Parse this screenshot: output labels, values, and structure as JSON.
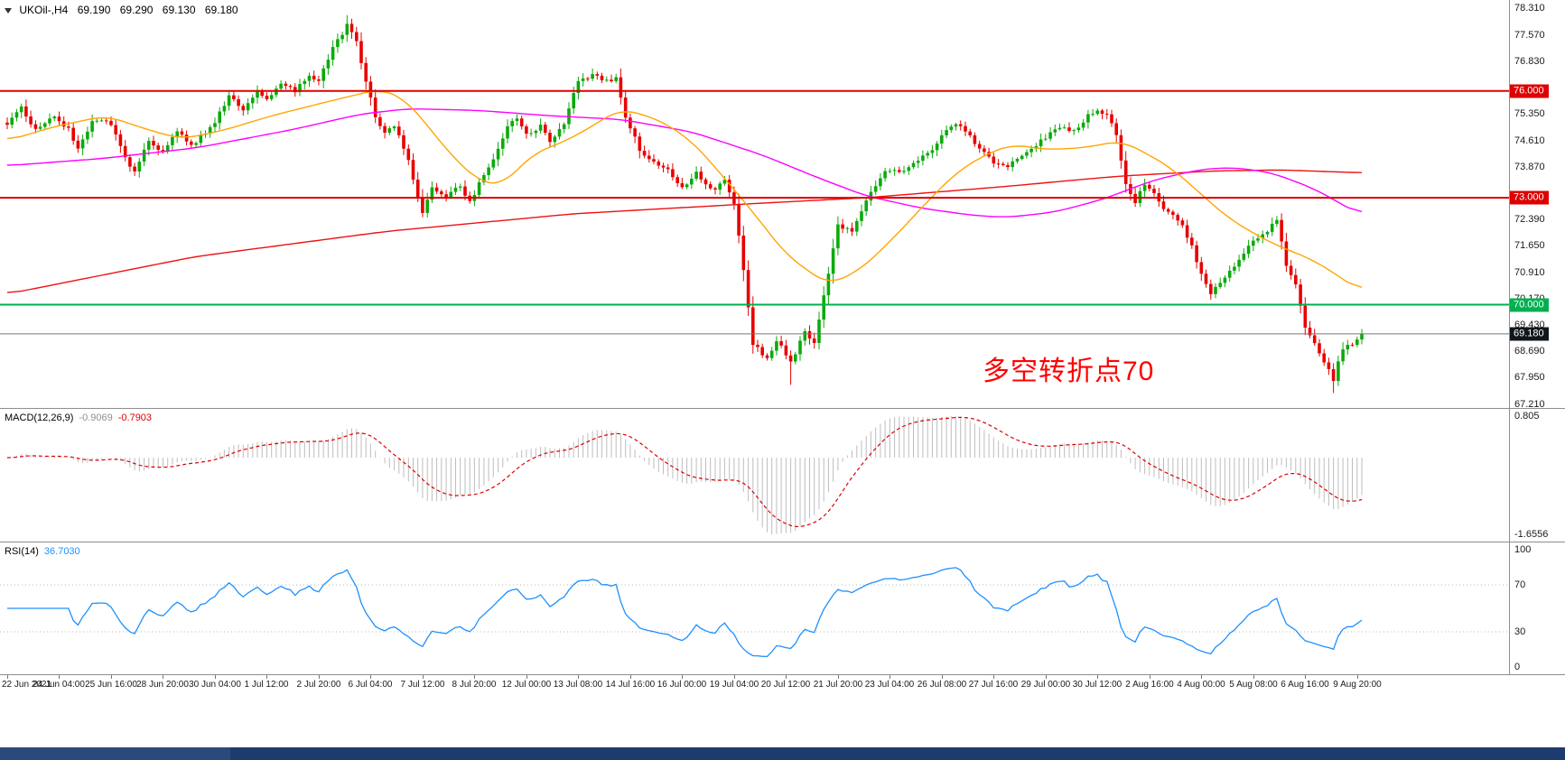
{
  "header": {
    "symbol": "UKOil-,H4",
    "open": "69.190",
    "high": "69.290",
    "low": "69.130",
    "close": "69.180"
  },
  "annotation": {
    "text": "多空转折点70",
    "color": "#ff0000"
  },
  "chart_data": [
    {
      "type": "candlestick",
      "symbol": "UKOil",
      "timeframe": "H4",
      "num_candles": 288,
      "ylim": [
        67.1,
        78.55
      ],
      "last_price": 69.18,
      "y_ticks": [
        "78.310",
        "77.570",
        "76.830",
        "75.350",
        "74.610",
        "73.870",
        "72.390",
        "71.650",
        "70.910",
        "70.170",
        "69.430",
        "68.690",
        "67.950",
        "67.210"
      ],
      "x_labels": [
        "22 Jun 2021",
        "24 Jun 04:00",
        "25 Jun 16:00",
        "28 Jun 20:00",
        "30 Jun 04:00",
        "1 Jul 12:00",
        "2 Jul 20:00",
        "6 Jul 04:00",
        "7 Jul 12:00",
        "8 Jul 20:00",
        "12 Jul 00:00",
        "13 Jul 08:00",
        "14 Jul 16:00",
        "16 Jul 00:00",
        "19 Jul 04:00",
        "20 Jul 12:00",
        "21 Jul 20:00",
        "23 Jul 04:00",
        "26 Jul 08:00",
        "27 Jul 16:00",
        "29 Jul 00:00",
        "30 Jul 12:00",
        "2 Aug 16:00",
        "4 Aug 00:00",
        "5 Aug 08:00",
        "6 Aug 16:00",
        "9 Aug 20:00"
      ],
      "x_label_step": 11,
      "hlines": [
        {
          "price": 76.0,
          "label": "76.000",
          "color": "#dd0000"
        },
        {
          "price": 73.0,
          "label": "73.000",
          "color": "#dd0000"
        },
        {
          "price": 70.0,
          "label": "70.000",
          "color": "#00b050"
        }
      ],
      "close_anchors": [
        [
          0,
          75.1
        ],
        [
          3,
          75.5
        ],
        [
          6,
          74.9
        ],
        [
          10,
          75.3
        ],
        [
          13,
          74.9
        ],
        [
          15,
          74.35
        ],
        [
          18,
          75.2
        ],
        [
          22,
          75.1
        ],
        [
          25,
          74.1
        ],
        [
          27,
          73.7
        ],
        [
          30,
          74.6
        ],
        [
          33,
          74.3
        ],
        [
          36,
          74.9
        ],
        [
          39,
          74.45
        ],
        [
          44,
          75.1
        ],
        [
          47,
          75.9
        ],
        [
          50,
          75.5
        ],
        [
          53,
          76.0
        ],
        [
          55,
          75.8
        ],
        [
          58,
          76.2
        ],
        [
          61,
          76.0
        ],
        [
          64,
          76.4
        ],
        [
          66,
          76.3
        ],
        [
          69,
          77.2
        ],
        [
          72,
          77.85
        ],
        [
          74,
          77.4
        ],
        [
          76,
          76.2
        ],
        [
          78,
          75.3
        ],
        [
          80,
          74.8
        ],
        [
          82,
          75.05
        ],
        [
          85,
          74.0
        ],
        [
          88,
          72.6
        ],
        [
          90,
          73.25
        ],
        [
          93,
          73.0
        ],
        [
          96,
          73.35
        ],
        [
          98,
          72.85
        ],
        [
          100,
          73.4
        ],
        [
          103,
          74.1
        ],
        [
          106,
          75.0
        ],
        [
          108,
          75.2
        ],
        [
          110,
          74.8
        ],
        [
          113,
          75.0
        ],
        [
          115,
          74.6
        ],
        [
          118,
          75.1
        ],
        [
          121,
          76.3
        ],
        [
          124,
          76.45
        ],
        [
          127,
          76.25
        ],
        [
          129,
          76.4
        ],
        [
          131,
          75.3
        ],
        [
          134,
          74.35
        ],
        [
          137,
          74.0
        ],
        [
          140,
          73.8
        ],
        [
          143,
          73.3
        ],
        [
          146,
          73.7
        ],
        [
          149,
          73.2
        ],
        [
          152,
          73.45
        ],
        [
          154,
          72.8
        ],
        [
          156,
          71.0
        ],
        [
          158,
          68.9
        ],
        [
          161,
          68.5
        ],
        [
          163,
          69.0
        ],
        [
          166,
          68.4
        ],
        [
          169,
          69.2
        ],
        [
          171,
          68.9
        ],
        [
          173,
          70.2
        ],
        [
          176,
          72.2
        ],
        [
          179,
          72.1
        ],
        [
          182,
          72.9
        ],
        [
          185,
          73.6
        ],
        [
          187,
          73.8
        ],
        [
          190,
          73.7
        ],
        [
          193,
          74.1
        ],
        [
          196,
          74.3
        ],
        [
          198,
          74.8
        ],
        [
          201,
          75.1
        ],
        [
          204,
          74.7
        ],
        [
          207,
          74.3
        ],
        [
          209,
          74.0
        ],
        [
          212,
          73.9
        ],
        [
          215,
          74.2
        ],
        [
          218,
          74.5
        ],
        [
          220,
          74.7
        ],
        [
          223,
          75.0
        ],
        [
          226,
          74.9
        ],
        [
          229,
          75.3
        ],
        [
          231,
          75.5
        ],
        [
          233,
          75.3
        ],
        [
          235,
          74.8
        ],
        [
          237,
          73.4
        ],
        [
          239,
          72.9
        ],
        [
          241,
          73.4
        ],
        [
          243,
          73.1
        ],
        [
          245,
          72.7
        ],
        [
          247,
          72.5
        ],
        [
          249,
          72.2
        ],
        [
          251,
          71.6
        ],
        [
          253,
          70.9
        ],
        [
          255,
          70.3
        ],
        [
          257,
          70.6
        ],
        [
          259,
          71.0
        ],
        [
          261,
          71.2
        ],
        [
          263,
          71.6
        ],
        [
          265,
          71.9
        ],
        [
          267,
          72.1
        ],
        [
          269,
          72.4
        ],
        [
          271,
          71.1
        ],
        [
          273,
          70.6
        ],
        [
          275,
          69.4
        ],
        [
          277,
          68.9
        ],
        [
          279,
          68.4
        ],
        [
          281,
          67.9
        ],
        [
          283,
          68.8
        ],
        [
          285,
          68.9
        ],
        [
          287,
          69.18
        ]
      ],
      "wick_events": [
        {
          "i": 72,
          "high": 0.15
        },
        {
          "i": 166,
          "low": 0.55
        },
        {
          "i": 281,
          "low": 0.25
        }
      ],
      "ma_fast_anchors": [
        [
          0,
          74.6
        ],
        [
          10,
          75.0
        ],
        [
          21,
          75.3
        ],
        [
          30,
          74.9
        ],
        [
          37,
          74.65
        ],
        [
          46,
          74.9
        ],
        [
          56,
          75.3
        ],
        [
          68,
          75.7
        ],
        [
          79,
          76.05
        ],
        [
          84,
          75.8
        ],
        [
          88,
          75.2
        ],
        [
          94,
          74.2
        ],
        [
          100,
          73.45
        ],
        [
          105,
          73.35
        ],
        [
          111,
          74.2
        ],
        [
          120,
          74.7
        ],
        [
          130,
          75.5
        ],
        [
          138,
          75.2
        ],
        [
          145,
          74.6
        ],
        [
          151,
          73.7
        ],
        [
          158,
          72.6
        ],
        [
          165,
          71.4
        ],
        [
          174,
          70.55
        ],
        [
          181,
          71.0
        ],
        [
          188,
          71.9
        ],
        [
          195,
          72.9
        ],
        [
          201,
          73.7
        ],
        [
          207,
          74.2
        ],
        [
          213,
          74.5
        ],
        [
          220,
          74.35
        ],
        [
          228,
          74.4
        ],
        [
          236,
          74.6
        ],
        [
          242,
          74.2
        ],
        [
          247,
          73.8
        ],
        [
          253,
          73.1
        ],
        [
          258,
          72.5
        ],
        [
          264,
          72.0
        ],
        [
          270,
          71.6
        ],
        [
          276,
          71.3
        ],
        [
          281,
          70.9
        ],
        [
          287,
          70.35
        ]
      ],
      "ma_mid_anchors": [
        [
          0,
          73.9
        ],
        [
          20,
          74.1
        ],
        [
          40,
          74.4
        ],
        [
          60,
          74.9
        ],
        [
          75,
          75.35
        ],
        [
          85,
          75.5
        ],
        [
          100,
          75.45
        ],
        [
          115,
          75.3
        ],
        [
          130,
          75.2
        ],
        [
          145,
          74.85
        ],
        [
          160,
          74.2
        ],
        [
          172,
          73.55
        ],
        [
          182,
          73.05
        ],
        [
          194,
          72.7
        ],
        [
          205,
          72.5
        ],
        [
          212,
          72.45
        ],
        [
          222,
          72.6
        ],
        [
          232,
          72.95
        ],
        [
          243,
          73.5
        ],
        [
          253,
          73.8
        ],
        [
          260,
          73.85
        ],
        [
          268,
          73.7
        ],
        [
          277,
          73.25
        ],
        [
          287,
          72.5
        ]
      ],
      "ma_slow_anchors": [
        [
          0,
          70.3
        ],
        [
          40,
          71.35
        ],
        [
          80,
          72.05
        ],
        [
          120,
          72.55
        ],
        [
          160,
          72.85
        ],
        [
          182,
          73.0
        ],
        [
          210,
          73.3
        ],
        [
          235,
          73.6
        ],
        [
          255,
          73.75
        ],
        [
          270,
          73.78
        ],
        [
          287,
          73.7
        ]
      ]
    },
    {
      "type": "line",
      "name": "MACD(12,26,9)",
      "last_values": [
        -0.9069,
        -0.7903
      ],
      "ylim": [
        -1.6556,
        0.805
      ],
      "derived": "histogram and signal computed from candlestick closes (EMA12-EMA26, signal EMA9)"
    },
    {
      "type": "line",
      "name": "RSI(14)",
      "last_value": 36.703,
      "ylim": [
        0,
        100
      ],
      "levels": [
        30,
        70
      ],
      "derived": "computed from candlestick closes, period 14"
    }
  ],
  "macd_panel": {
    "label": "MACD(12,26,9)",
    "macd_value": "-0.9069",
    "signal_value": "-0.7903",
    "axis_max": "0.805",
    "axis_min": "-1.6556",
    "hist_color": "#bdbdbd",
    "signal_color": "#dd0000",
    "macd_value_color": "#909090"
  },
  "rsi_panel": {
    "label": "RSI(14)",
    "value": "36.7030",
    "axis_labels": [
      "100",
      "70",
      "30",
      "0"
    ],
    "levels": [
      70,
      30
    ],
    "line_color": "#1e90ff",
    "period": 14
  },
  "colors": {
    "bull": "#0caa0c",
    "bear": "#e80000",
    "ma_fast": "#ffa500",
    "ma_mid": "#ff00ff",
    "ma_slow": "#ee1111",
    "current_price_line": "#777777",
    "price_badge_bg": "#11161c",
    "level_dotted": "#b8b8b8"
  },
  "taskbar": {
    "bg": "#1d3c6d",
    "left_segment_bg": "#2a4a7d"
  }
}
